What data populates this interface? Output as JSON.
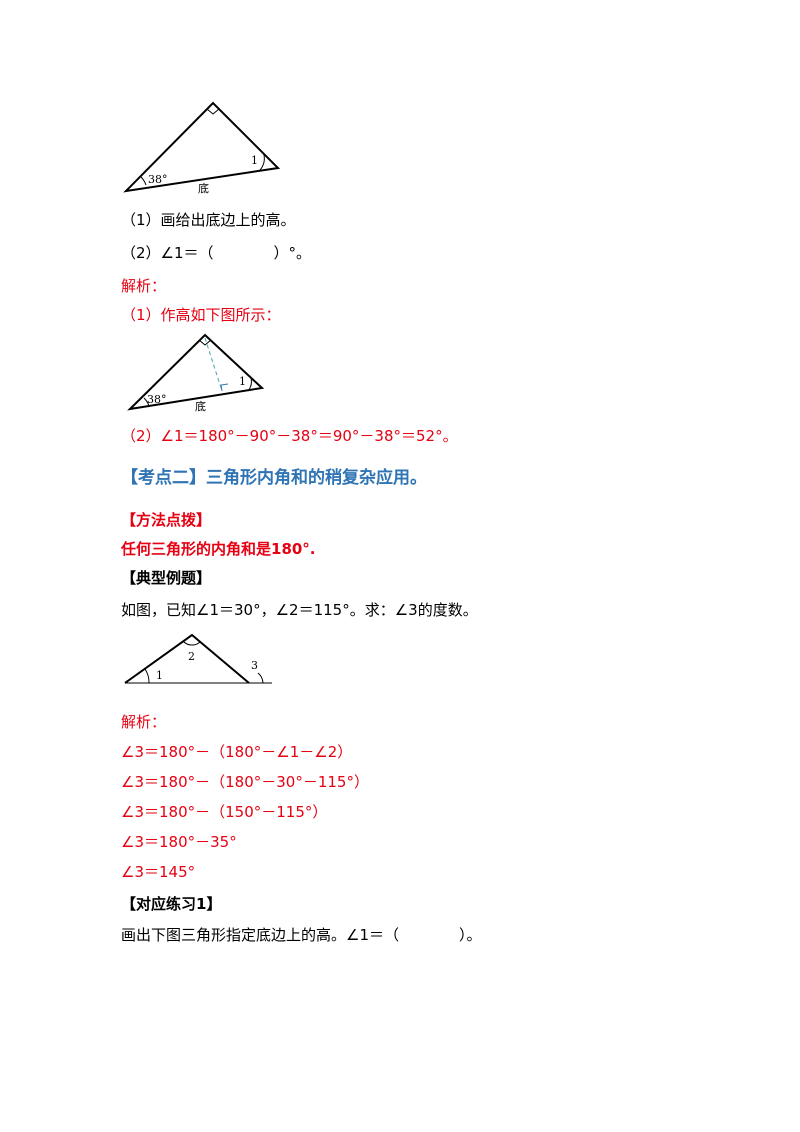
{
  "figure1": {
    "angle_label": "1",
    "base_angle": "38°",
    "base_label": "底"
  },
  "q1": "（1）画给出底边上的高。",
  "q2": "（2）∠1＝（　　　　）°。",
  "analysis_label_1": "解析：",
  "a1": "（1）作高如下图所示：",
  "figure2": {
    "angle_label": "1",
    "base_angle": "38°",
    "base_label": "底"
  },
  "a2": "（2）∠1＝180°－90°－38°＝90°－38°＝52°。",
  "section_title": "【考点二】三角形内角和的稍复杂应用。",
  "method_title": "【方法点拨】",
  "method_text": "任何三角形的内角和是180°.",
  "example_title": "【典型例题】",
  "example_text": "如图，已知∠1＝30°，∠2＝115°。求：∠3的度数。",
  "figure3": {
    "label_1": "1",
    "label_2": "2",
    "label_3": "3"
  },
  "analysis_label_2": "解析：",
  "steps": [
    "∠3＝180°－（180°－∠1－∠2）",
    "∠3＝180°－（180°－30°－115°）",
    "∠3＝180°－（150°－115°）",
    "∠3＝180°－35°",
    "∠3＝145°"
  ],
  "practice_title": "【对应练习1】",
  "practice_text": "画出下图三角形指定底边上的高。∠1＝（　　　　）。",
  "colors": {
    "red": "#e60012",
    "blue": "#2f74b5",
    "dashed": "#4aa3a8"
  }
}
